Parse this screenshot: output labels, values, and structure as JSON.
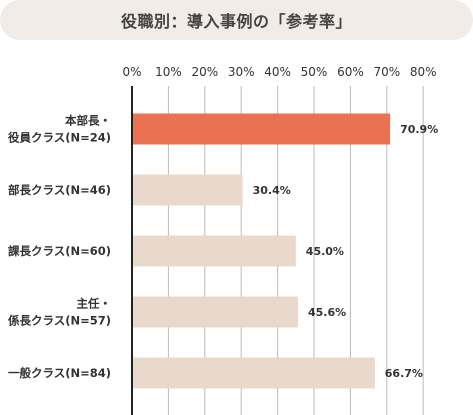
{
  "title": "役職別：導入事例の「参考率」",
  "colors": {
    "highlight": "#ea7151",
    "bar": "#e9d9cd",
    "grid": "#bbbbbb",
    "axis": "#222222",
    "title_bg": "#f1ece7"
  },
  "chart_data": {
    "type": "bar",
    "orientation": "horizontal",
    "title": "役職別：導入事例の「参考率」",
    "xlim": [
      0,
      80
    ],
    "ticks": [
      "0%",
      "10%",
      "20%",
      "30%",
      "40%",
      "50%",
      "60%",
      "70%",
      "80%"
    ],
    "tick_values": [
      0,
      10,
      20,
      30,
      40,
      50,
      60,
      70,
      80
    ],
    "grid": true,
    "categories": [
      [
        "本部長・",
        "役員クラス(N=24)"
      ],
      [
        "部長クラス(N=46)"
      ],
      [
        "課長クラス(N=60)"
      ],
      [
        "主任・",
        "係長クラス(N=57)"
      ],
      [
        "一般クラス(N=84)"
      ]
    ],
    "values": [
      70.9,
      30.4,
      45.0,
      45.6,
      66.7
    ],
    "value_labels": [
      "70.9%",
      "30.4%",
      "45.0%",
      "45.6%",
      "66.7%"
    ],
    "highlight_index": 0
  }
}
